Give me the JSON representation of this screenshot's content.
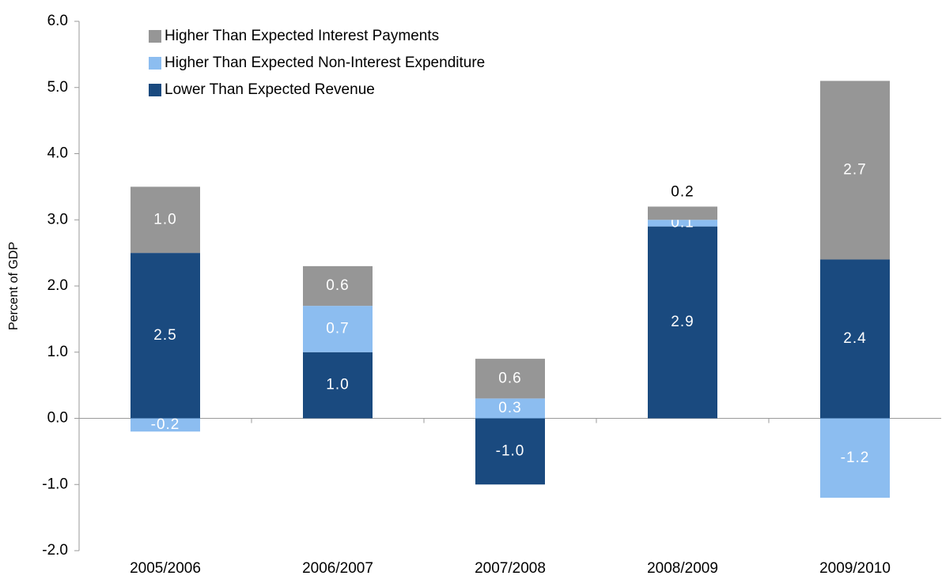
{
  "chart_data": {
    "type": "stacked_bar",
    "y_label": "Percent of GDP",
    "categories": [
      "2005/2006",
      "2006/2007",
      "2007/2008",
      "2008/2009",
      "2009/2010"
    ],
    "series": [
      {
        "name": "Lower Than Expected Revenue",
        "color": "#1a4a7f",
        "values": [
          2.5,
          1.0,
          -1.0,
          2.9,
          2.4
        ],
        "value_labels": [
          "2.5",
          "1.0",
          "-1.0",
          "2.9",
          "2.4"
        ]
      },
      {
        "name": "Higher Than Expected Non-Interest Expenditure",
        "color": "#8cbdf0",
        "values": [
          -0.2,
          0.7,
          0.3,
          0.1,
          -1.2
        ],
        "value_labels": [
          "-0.2",
          "0.7",
          "0.3",
          "0.1",
          "-1.2"
        ]
      },
      {
        "name": "Higher Than Expected Interest Payments",
        "color": "#969696",
        "values": [
          1.0,
          0.6,
          0.6,
          0.2,
          2.7
        ],
        "value_labels": [
          "1.0",
          "0.6",
          "0.6",
          "0.2",
          "2.7"
        ]
      }
    ],
    "ylim": [
      -2,
      6
    ],
    "yticks": [
      {
        "value": -2,
        "label": "-2.0"
      },
      {
        "value": -1,
        "label": "-1.0"
      },
      {
        "value": 0,
        "label": "0.0"
      },
      {
        "value": 1,
        "label": "1.0"
      },
      {
        "value": 2,
        "label": "2.0"
      },
      {
        "value": 3,
        "label": "3.0"
      },
      {
        "value": 4,
        "label": "4.0"
      },
      {
        "value": 5,
        "label": "5.0"
      },
      {
        "value": 6,
        "label": "6.0"
      }
    ],
    "legend": "upper left"
  }
}
